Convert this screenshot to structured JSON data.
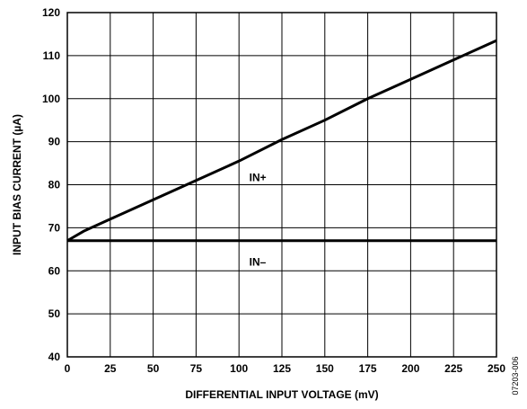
{
  "chart_data": {
    "type": "line",
    "xlabel": "DIFFERENTIAL INPUT VOLTAGE (mV)",
    "ylabel": "INPUT BIAS CURRENT (µA)",
    "xlim": [
      0,
      250
    ],
    "ylim": [
      40,
      120
    ],
    "x_ticks": [
      0,
      25,
      50,
      75,
      100,
      125,
      150,
      175,
      200,
      225,
      250
    ],
    "y_ticks": [
      40,
      50,
      60,
      70,
      80,
      90,
      100,
      110,
      120
    ],
    "grid": true,
    "series": [
      {
        "name": "IN+",
        "x": [
          0,
          10,
          25,
          50,
          75,
          100,
          125,
          150,
          175,
          200,
          225,
          250
        ],
        "y": [
          67,
          69.3,
          72,
          76.5,
          81,
          85.5,
          90.5,
          95,
          100,
          104.5,
          109,
          113.5
        ]
      },
      {
        "name": "IN–",
        "x": [
          0,
          250
        ],
        "y": [
          67,
          67
        ]
      }
    ],
    "annotations": [
      "IN+",
      "IN–"
    ],
    "figure_id": "07203-006"
  }
}
